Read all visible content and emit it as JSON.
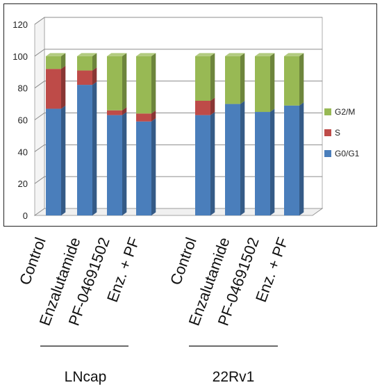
{
  "chart_data": {
    "type": "bar",
    "stacked": true,
    "three_d": true,
    "groups": [
      {
        "label": "LNcap",
        "categories": [
          "Control",
          "Enzalutamide",
          "PF-04691502",
          "Enz. + PF"
        ]
      },
      {
        "label": "22Rv1",
        "categories": [
          "Control",
          "Enzalutamide",
          "PF-04691502",
          "Enz. + PF"
        ]
      }
    ],
    "categories": [
      "Control",
      "Enzalutamide",
      "PF-04691502",
      "Enz. + PF",
      "Control",
      "Enzalutamide",
      "PF-04691502",
      "Enz. + PF"
    ],
    "series": [
      {
        "name": "G0/G1",
        "color": "#4A7EBB",
        "values": [
          67,
          82,
          63,
          59,
          63,
          70,
          65,
          69
        ]
      },
      {
        "name": "S",
        "color": "#BE4B48",
        "values": [
          25,
          9,
          3,
          5,
          9,
          0,
          0,
          0
        ]
      },
      {
        "name": "G2/M",
        "color": "#98B954",
        "values": [
          8,
          9,
          34,
          36,
          28,
          30,
          35,
          31
        ]
      }
    ],
    "yticks": [
      0,
      20,
      40,
      60,
      80,
      100,
      120
    ],
    "ylim": [
      0,
      120
    ],
    "grid": true,
    "legend_position": "right"
  }
}
